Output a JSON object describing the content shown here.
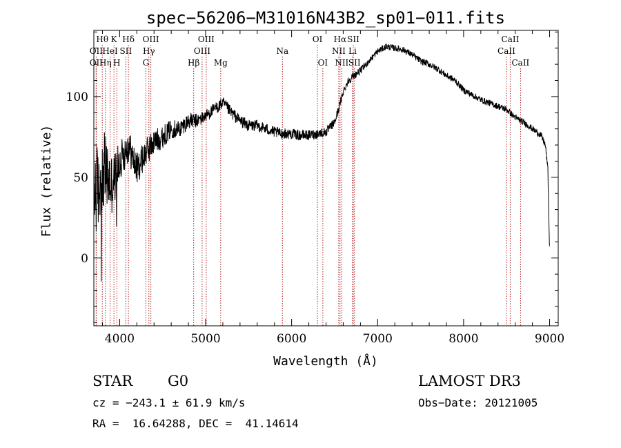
{
  "chart_data": {
    "type": "line",
    "title": "spec−56206−M31016N43B2_sp01−011.fits",
    "xlabel": "Wavelength (Å)",
    "ylabel": "Flux (relative)",
    "xlim": [
      3700,
      9100
    ],
    "ylim": [
      -42,
      141
    ],
    "xticks": [
      4000,
      5000,
      6000,
      7000,
      8000,
      9000
    ],
    "yticks": [
      0,
      50,
      100
    ],
    "line_color": "#000000",
    "marker_color": "#b22222",
    "spectrum_anchor_points": {
      "x": [
        3700,
        3760,
        3820,
        3900,
        3960,
        4000,
        4100,
        4200,
        4300,
        4400,
        4500,
        4600,
        4700,
        4800,
        4900,
        5000,
        5100,
        5200,
        5300,
        5400,
        5500,
        5600,
        5700,
        5800,
        5900,
        6000,
        6100,
        6200,
        6300,
        6400,
        6500,
        6550,
        6600,
        6650,
        6700,
        6750,
        6800,
        6900,
        7000,
        7100,
        7200,
        7300,
        7400,
        7500,
        7600,
        7700,
        7800,
        7900,
        8000,
        8100,
        8200,
        8300,
        8400,
        8500,
        8600,
        8700,
        8800,
        8900,
        8950,
        8980,
        9000
      ],
      "y": [
        40,
        45,
        55,
        45,
        52,
        60,
        70,
        55,
        65,
        72,
        75,
        80,
        80,
        85,
        85,
        88,
        92,
        96,
        90,
        85,
        82,
        82,
        80,
        78,
        77,
        77,
        76,
        76,
        77,
        78,
        84,
        93,
        103,
        109,
        112,
        114,
        116,
        122,
        128,
        131,
        130,
        129,
        126,
        122,
        120,
        117,
        113,
        110,
        104,
        101,
        98,
        96,
        94,
        92,
        87,
        84,
        80,
        76,
        70,
        55,
        2
      ]
    },
    "noise_amplitude_points": {
      "x": [
        3700,
        3800,
        3900,
        4000,
        4200,
        4400,
        4600,
        5000,
        6400,
        6600,
        7000,
        8000,
        9000
      ],
      "y": [
        30,
        25,
        20,
        12,
        10,
        8,
        6,
        4,
        3,
        2.5,
        2,
        2,
        2
      ]
    },
    "line_markers": [
      {
        "label": "Hθ",
        "wavelength": 3798,
        "row": 1
      },
      {
        "label": "OII",
        "wavelength": 3727,
        "row": 2
      },
      {
        "label": "OII",
        "wavelength": 3727,
        "row": 3
      },
      {
        "label": "K",
        "wavelength": 3934,
        "row": 1
      },
      {
        "label": "HeI",
        "wavelength": 3889,
        "row": 2
      },
      {
        "label": "Hη",
        "wavelength": 3835,
        "row": 3
      },
      {
        "label": "Hδ",
        "wavelength": 4102,
        "row": 1
      },
      {
        "label": "SII",
        "wavelength": 4072,
        "row": 2
      },
      {
        "label": "H",
        "wavelength": 3968,
        "row": 3
      },
      {
        "label": "OIII",
        "wavelength": 4363,
        "row": 1
      },
      {
        "label": "Hγ",
        "wavelength": 4340,
        "row": 2
      },
      {
        "label": "G",
        "wavelength": 4305,
        "row": 3
      },
      {
        "label": "Hβ",
        "wavelength": 4861,
        "row": 3
      },
      {
        "label": "OIII",
        "wavelength": 5007,
        "row": 1
      },
      {
        "label": "OIII",
        "wavelength": 4959,
        "row": 2
      },
      {
        "label": "Mg",
        "wavelength": 5175,
        "row": 3
      },
      {
        "label": "Na",
        "wavelength": 5893,
        "row": 2
      },
      {
        "label": "OI",
        "wavelength": 6300,
        "row": 1
      },
      {
        "label": "OI",
        "wavelength": 6363,
        "row": 3
      },
      {
        "label": "Hα",
        "wavelength": 6563,
        "row": 1
      },
      {
        "label": "NII",
        "wavelength": 6548,
        "row": 2
      },
      {
        "label": "NII",
        "wavelength": 6583,
        "row": 3
      },
      {
        "label": "SII",
        "wavelength": 6717,
        "row": 1
      },
      {
        "label": "Li",
        "wavelength": 6708,
        "row": 2
      },
      {
        "label": "SII",
        "wavelength": 6731,
        "row": 3
      },
      {
        "label": "CaII",
        "wavelength": 8542,
        "row": 1
      },
      {
        "label": "CaII",
        "wavelength": 8498,
        "row": 2
      },
      {
        "label": "CaII",
        "wavelength": 8662,
        "row": 3
      }
    ]
  },
  "info": {
    "class_label": "STAR",
    "subclass": "G0",
    "survey": "LAMOST DR3",
    "cz": "cz = −243.1 ± 61.9 km/s",
    "obs_date": "Obs−Date: 20121005",
    "radec": "RA =  16.64288, DEC =  41.14614"
  }
}
